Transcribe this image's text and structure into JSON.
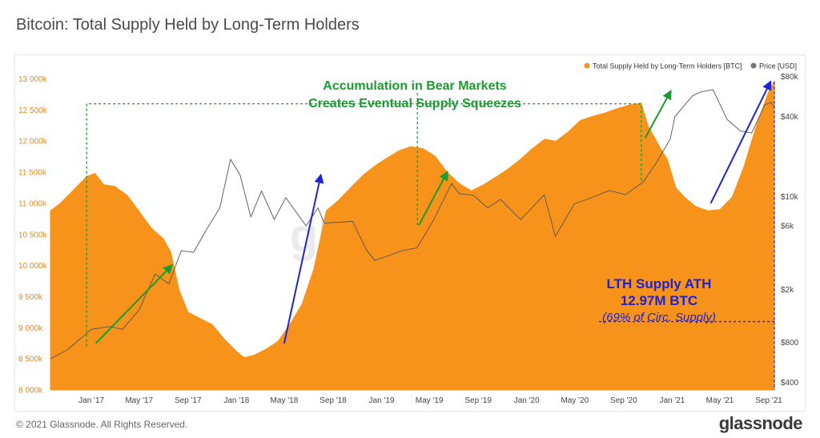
{
  "header": {
    "title": "Bitcoin: Total Supply Held by Long-Term Holders"
  },
  "footer": {
    "copyright": "© 2021 Glassnode. All Rights Reserved.",
    "brand": "glassnode"
  },
  "watermark": "glassnode",
  "colors": {
    "supply": "#f7931a",
    "price": "#555555",
    "green": "#1a9c2e",
    "blue": "#1d23d6"
  },
  "chart_data": {
    "type": "area",
    "title": "Bitcoin: Total Supply Held by Long-Term Holders",
    "legend": [
      {
        "name": "Total Supply Held by Long-Term Holders [BTC]",
        "color": "#f7931a"
      },
      {
        "name": "Price [USD]",
        "color": "#777777"
      }
    ],
    "legend_position": "top-right",
    "x_ticks": [
      "Jan '17",
      "May '17",
      "Sep '17",
      "Jan '18",
      "May '18",
      "Sep '18",
      "Jan '19",
      "May '19",
      "Sep '19",
      "Jan '20",
      "May '20",
      "Sep '20",
      "Jan '21",
      "May '21",
      "Sep '21"
    ],
    "y_left_ticks": [
      "8 000k",
      "8 500k",
      "9 000k",
      "9 500k",
      "10 000k",
      "10 500k",
      "11 000k",
      "11 500k",
      "12 000k",
      "12 500k",
      "13 000k"
    ],
    "y_left_range": [
      8000000,
      13200000
    ],
    "y_right_ticks": [
      "$400",
      "$800",
      "$2k",
      "$6k",
      "$10k",
      "$40k",
      "$80k"
    ],
    "y_right_tick_values": [
      400,
      800,
      2000,
      6000,
      10000,
      40000,
      80000
    ],
    "y_right_scale": "log",
    "x_range": [
      "2016-09-20",
      "2021-09-15"
    ],
    "series": [
      {
        "name": "Total Supply Held by Long-Term Holders [BTC]",
        "axis": "left",
        "points": [
          [
            "2016-09-20",
            10880000
          ],
          [
            "2016-10-15",
            11000000
          ],
          [
            "2016-11-15",
            11200000
          ],
          [
            "2016-12-20",
            11430000
          ],
          [
            "2017-01-10",
            11480000
          ],
          [
            "2017-02-01",
            11300000
          ],
          [
            "2017-03-01",
            11270000
          ],
          [
            "2017-04-01",
            11130000
          ],
          [
            "2017-05-01",
            10870000
          ],
          [
            "2017-06-01",
            10600000
          ],
          [
            "2017-07-01",
            10430000
          ],
          [
            "2017-07-20",
            10210000
          ],
          [
            "2017-08-10",
            9600000
          ],
          [
            "2017-09-01",
            9250000
          ],
          [
            "2017-10-01",
            9150000
          ],
          [
            "2017-11-01",
            9050000
          ],
          [
            "2017-12-01",
            8820000
          ],
          [
            "2018-01-01",
            8620000
          ],
          [
            "2018-01-20",
            8520000
          ],
          [
            "2018-02-15",
            8560000
          ],
          [
            "2018-03-15",
            8650000
          ],
          [
            "2018-04-15",
            8780000
          ],
          [
            "2018-05-15",
            9050000
          ],
          [
            "2018-06-15",
            9380000
          ],
          [
            "2018-07-15",
            9950000
          ],
          [
            "2018-08-15",
            10880000
          ],
          [
            "2018-09-15",
            11050000
          ],
          [
            "2018-10-15",
            11250000
          ],
          [
            "2018-11-15",
            11450000
          ],
          [
            "2018-12-15",
            11600000
          ],
          [
            "2019-01-15",
            11730000
          ],
          [
            "2019-02-15",
            11850000
          ],
          [
            "2019-03-15",
            11910000
          ],
          [
            "2019-04-15",
            11880000
          ],
          [
            "2019-05-15",
            11760000
          ],
          [
            "2019-06-15",
            11500000
          ],
          [
            "2019-07-15",
            11320000
          ],
          [
            "2019-08-15",
            11200000
          ],
          [
            "2019-09-15",
            11300000
          ],
          [
            "2019-10-15",
            11420000
          ],
          [
            "2019-11-15",
            11550000
          ],
          [
            "2019-12-15",
            11700000
          ],
          [
            "2020-01-15",
            11880000
          ],
          [
            "2020-02-15",
            12030000
          ],
          [
            "2020-03-15",
            12000000
          ],
          [
            "2020-04-15",
            12150000
          ],
          [
            "2020-05-15",
            12330000
          ],
          [
            "2020-06-15",
            12400000
          ],
          [
            "2020-07-15",
            12450000
          ],
          [
            "2020-08-15",
            12520000
          ],
          [
            "2020-09-15",
            12580000
          ],
          [
            "2020-10-15",
            12610000
          ],
          [
            "2020-11-01",
            12250000
          ],
          [
            "2020-12-01",
            11900000
          ],
          [
            "2020-12-20",
            11700000
          ],
          [
            "2021-01-10",
            11250000
          ],
          [
            "2021-02-01",
            11100000
          ],
          [
            "2021-03-01",
            10950000
          ],
          [
            "2021-04-01",
            10880000
          ],
          [
            "2021-05-01",
            10900000
          ],
          [
            "2021-06-01",
            11100000
          ],
          [
            "2021-07-01",
            11600000
          ],
          [
            "2021-08-01",
            12250000
          ],
          [
            "2021-09-01",
            12800000
          ],
          [
            "2021-09-15",
            12970000
          ]
        ]
      },
      {
        "name": "Price [USD]",
        "axis": "right",
        "points": [
          [
            "2016-09-20",
            600
          ],
          [
            "2016-11-01",
            700
          ],
          [
            "2017-01-01",
            1000
          ],
          [
            "2017-02-15",
            1050
          ],
          [
            "2017-03-20",
            1000
          ],
          [
            "2017-05-01",
            1400
          ],
          [
            "2017-06-10",
            2600
          ],
          [
            "2017-07-15",
            2200
          ],
          [
            "2017-08-15",
            3900
          ],
          [
            "2017-09-15",
            3800
          ],
          [
            "2017-10-20",
            5800
          ],
          [
            "2017-11-20",
            8200
          ],
          [
            "2017-12-17",
            19000
          ],
          [
            "2018-01-10",
            14500
          ],
          [
            "2018-02-06",
            7000
          ],
          [
            "2018-03-05",
            11000
          ],
          [
            "2018-04-06",
            6700
          ],
          [
            "2018-05-05",
            9800
          ],
          [
            "2018-06-25",
            6000
          ],
          [
            "2018-07-25",
            8200
          ],
          [
            "2018-08-10",
            6300
          ],
          [
            "2018-09-20",
            6400
          ],
          [
            "2018-10-20",
            6500
          ],
          [
            "2018-11-25",
            3900
          ],
          [
            "2018-12-15",
            3300
          ],
          [
            "2019-01-20",
            3600
          ],
          [
            "2019-02-20",
            3900
          ],
          [
            "2019-03-31",
            4100
          ],
          [
            "2019-05-10",
            6500
          ],
          [
            "2019-06-26",
            12500
          ],
          [
            "2019-07-15",
            10500
          ],
          [
            "2019-08-20",
            10200
          ],
          [
            "2019-09-25",
            8200
          ],
          [
            "2019-10-27",
            9500
          ],
          [
            "2019-12-17",
            6700
          ],
          [
            "2020-02-14",
            10300
          ],
          [
            "2020-03-13",
            5000
          ],
          [
            "2020-04-30",
            8800
          ],
          [
            "2020-06-01",
            9500
          ],
          [
            "2020-07-28",
            11100
          ],
          [
            "2020-09-05",
            10300
          ],
          [
            "2020-10-21",
            12900
          ],
          [
            "2020-11-25",
            18500
          ],
          [
            "2020-12-27",
            27000
          ],
          [
            "2021-01-08",
            40000
          ],
          [
            "2021-02-21",
            57000
          ],
          [
            "2021-03-13",
            61000
          ],
          [
            "2021-04-14",
            63500
          ],
          [
            "2021-05-19",
            38000
          ],
          [
            "2021-06-22",
            31000
          ],
          [
            "2021-07-20",
            30000
          ],
          [
            "2021-08-22",
            49000
          ],
          [
            "2021-09-06",
            51000
          ],
          [
            "2021-09-15",
            47500
          ]
        ]
      }
    ],
    "annotations": [
      {
        "lines": [
          "Accumulation in Bear Markets",
          "Creates Eventual Supply Squeezes"
        ],
        "color": "#1a9c2e"
      },
      {
        "lines": [
          "LTH Supply ATH",
          "12.97M BTC",
          "(69% of Circ. Supply)"
        ],
        "color": "#1d23d6"
      }
    ]
  }
}
